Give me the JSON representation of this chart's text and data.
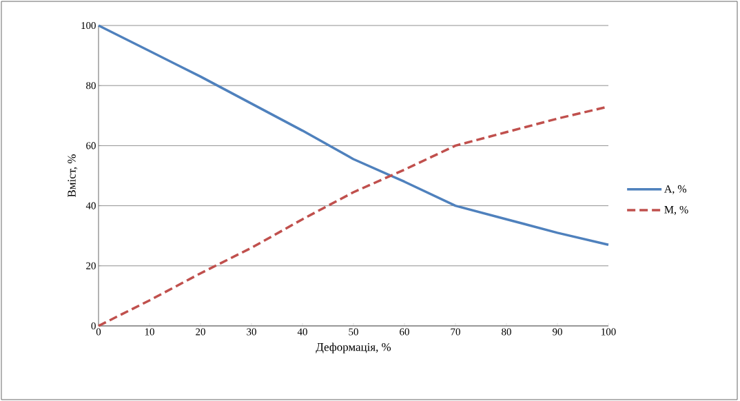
{
  "chart_data": {
    "type": "line",
    "xlabel": "Деформація, %",
    "ylabel": "Вміст, %",
    "x": [
      0,
      10,
      20,
      30,
      40,
      50,
      60,
      70,
      80,
      90,
      100
    ],
    "series": [
      {
        "name": "A, %",
        "color": "#4f81bd",
        "line_style": "solid",
        "values": [
          100,
          91.5,
          83,
          74,
          65,
          55.5,
          48,
          40,
          35.5,
          31,
          27
        ]
      },
      {
        "name": "M, %",
        "color": "#c0504d",
        "line_style": "dashed",
        "values": [
          0,
          8.5,
          17.5,
          26,
          35.5,
          44.5,
          52,
          60,
          64.5,
          69,
          73
        ]
      }
    ],
    "xlim": [
      0,
      100
    ],
    "ylim": [
      0,
      100
    ],
    "xticks": [
      0,
      10,
      20,
      30,
      40,
      50,
      60,
      70,
      80,
      90,
      100
    ],
    "yticks": [
      0,
      20,
      40,
      60,
      80,
      100
    ],
    "grid": "y",
    "legend": "right",
    "marker": "none"
  }
}
